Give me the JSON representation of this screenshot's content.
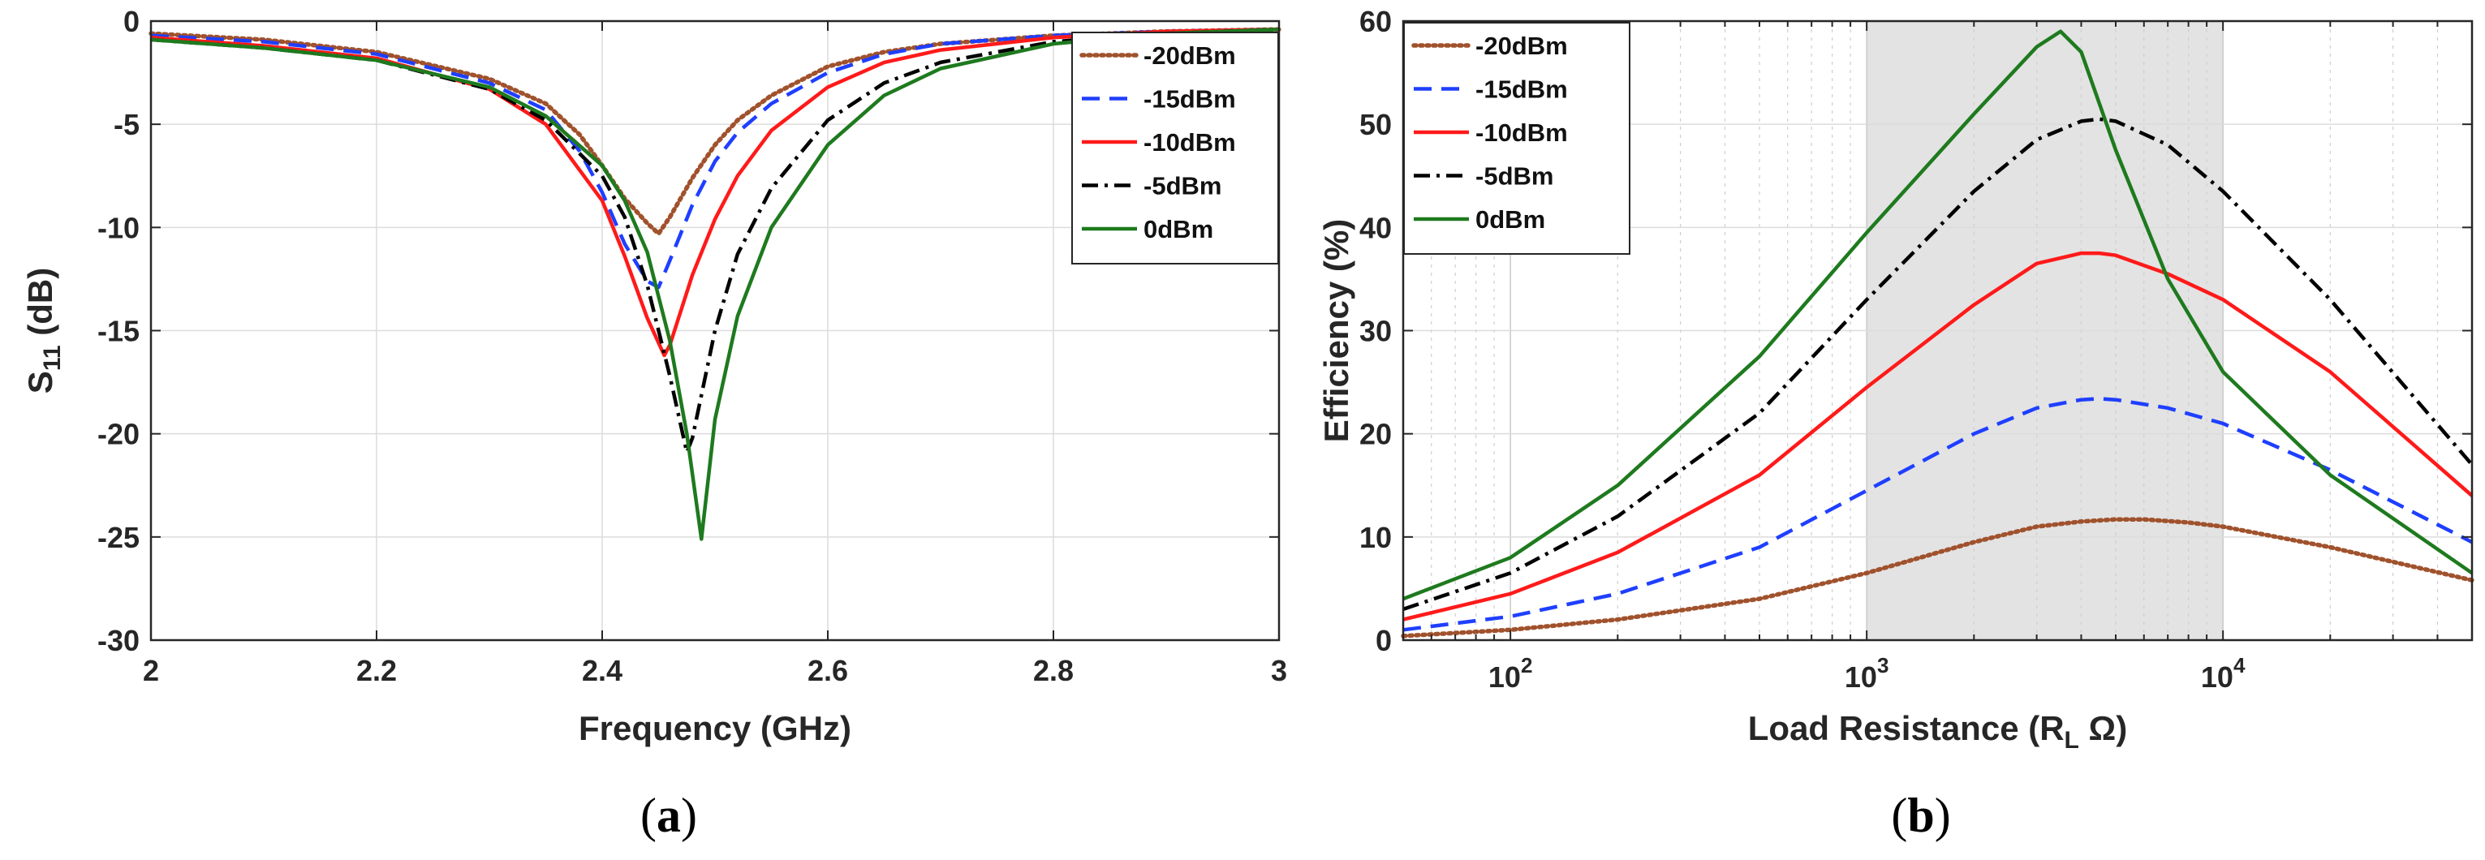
{
  "chart_data": [
    {
      "type": "line",
      "panel_label": "(a)",
      "panel_letter": "a",
      "xlabel": "Frequency (GHz)",
      "ylabel": "S11 (dB)",
      "ylabel_main": "S",
      "ylabel_sub": "11",
      "ylabel_rest": " (dB)",
      "xlim": [
        2,
        3
      ],
      "ylim": [
        -30,
        0
      ],
      "xticks": [
        2,
        2.2,
        2.4,
        2.6,
        2.8,
        3
      ],
      "xtick_labels": [
        "2",
        "2.2",
        "2.4",
        "2.6",
        "2.8",
        "3"
      ],
      "yticks": [
        -30,
        -25,
        -20,
        -15,
        -10,
        -5,
        0
      ],
      "ytick_labels": [
        "-30",
        "-25",
        "-20",
        "-15",
        "-10",
        "-5",
        "0"
      ],
      "grid": true,
      "legend": "top-right",
      "series": [
        {
          "name": "-20dBm",
          "color": "#a0522d",
          "style": "dotted",
          "x": [
            2.0,
            2.1,
            2.2,
            2.3,
            2.35,
            2.38,
            2.4,
            2.42,
            2.44,
            2.45,
            2.46,
            2.48,
            2.5,
            2.52,
            2.55,
            2.6,
            2.65,
            2.7,
            2.8,
            2.9,
            3.0
          ],
          "y": [
            -0.6,
            -0.9,
            -1.5,
            -2.8,
            -4.0,
            -5.5,
            -7.0,
            -8.6,
            -9.8,
            -10.3,
            -9.5,
            -7.6,
            -6.0,
            -4.8,
            -3.6,
            -2.2,
            -1.5,
            -1.1,
            -0.7,
            -0.5,
            -0.4
          ]
        },
        {
          "name": "-15dBm",
          "color": "#1f3fff",
          "style": "dashed",
          "x": [
            2.0,
            2.1,
            2.2,
            2.3,
            2.35,
            2.38,
            2.4,
            2.42,
            2.44,
            2.45,
            2.46,
            2.48,
            2.5,
            2.52,
            2.55,
            2.6,
            2.65,
            2.7,
            2.8,
            2.9,
            3.0
          ],
          "y": [
            -0.7,
            -1.0,
            -1.6,
            -3.0,
            -4.3,
            -6.3,
            -8.3,
            -10.8,
            -12.6,
            -12.9,
            -11.6,
            -8.9,
            -6.8,
            -5.4,
            -4.0,
            -2.5,
            -1.6,
            -1.1,
            -0.7,
            -0.5,
            -0.4
          ]
        },
        {
          "name": "-10dBm",
          "color": "#ff1a1a",
          "style": "solid",
          "x": [
            2.0,
            2.1,
            2.2,
            2.3,
            2.35,
            2.4,
            2.42,
            2.44,
            2.455,
            2.46,
            2.48,
            2.5,
            2.52,
            2.55,
            2.6,
            2.65,
            2.7,
            2.8,
            2.9,
            3.0
          ],
          "y": [
            -0.8,
            -1.2,
            -1.8,
            -3.3,
            -5.0,
            -8.7,
            -11.4,
            -14.4,
            -16.2,
            -15.7,
            -12.3,
            -9.6,
            -7.5,
            -5.3,
            -3.2,
            -2.0,
            -1.4,
            -0.8,
            -0.5,
            -0.4
          ]
        },
        {
          "name": "-5dBm",
          "color": "#000000",
          "style": "dashdot",
          "x": [
            2.0,
            2.1,
            2.2,
            2.3,
            2.35,
            2.4,
            2.42,
            2.44,
            2.46,
            2.475,
            2.48,
            2.5,
            2.52,
            2.55,
            2.6,
            2.65,
            2.7,
            2.8,
            2.9,
            3.0
          ],
          "y": [
            -0.9,
            -1.3,
            -1.9,
            -3.3,
            -4.8,
            -7.5,
            -9.5,
            -12.8,
            -17.2,
            -20.9,
            -20.2,
            -15.0,
            -11.3,
            -8.1,
            -4.8,
            -3.0,
            -2.0,
            -1.0,
            -0.6,
            -0.4
          ]
        },
        {
          "name": "0dBm",
          "color": "#1e7a1e",
          "style": "solid",
          "x": [
            2.0,
            2.1,
            2.2,
            2.3,
            2.35,
            2.4,
            2.42,
            2.44,
            2.46,
            2.475,
            2.488,
            2.5,
            2.52,
            2.55,
            2.6,
            2.65,
            2.7,
            2.8,
            2.9,
            3.0
          ],
          "y": [
            -0.9,
            -1.3,
            -1.9,
            -3.2,
            -4.6,
            -7.0,
            -8.7,
            -11.2,
            -15.5,
            -20.0,
            -25.1,
            -19.3,
            -14.3,
            -10.0,
            -6.0,
            -3.6,
            -2.3,
            -1.1,
            -0.6,
            -0.4
          ]
        }
      ]
    },
    {
      "type": "line",
      "panel_label": "(b)",
      "panel_letter": "b",
      "xlabel": "Load Resistance (RL Ω)",
      "xlabel_main": "Load Resistance (R",
      "xlabel_sub": "L",
      "xlabel_rest": " Ω)",
      "ylabel": "Efficiency (%)",
      "xscale": "log",
      "xlim": [
        50,
        50000
      ],
      "ylim": [
        0,
        60
      ],
      "xticks": [
        100,
        1000,
        10000
      ],
      "xtick_bases": [
        "10",
        "10",
        "10"
      ],
      "xtick_exps": [
        "2",
        "3",
        "4"
      ],
      "yticks": [
        0,
        10,
        20,
        30,
        40,
        50,
        60
      ],
      "ytick_labels": [
        "0",
        "10",
        "20",
        "30",
        "40",
        "50",
        "60"
      ],
      "shaded_region": [
        1000,
        10000
      ],
      "grid": true,
      "legend": "top-left",
      "series": [
        {
          "name": "-20dBm",
          "color": "#a0522d",
          "style": "dotted",
          "x": [
            50,
            100,
            200,
            500,
            1000,
            2000,
            3000,
            4000,
            5000,
            6000,
            8000,
            10000,
            20000,
            50000
          ],
          "y": [
            0.4,
            1.0,
            2.0,
            4.0,
            6.5,
            9.5,
            11.0,
            11.5,
            11.7,
            11.7,
            11.4,
            11.0,
            9.0,
            5.8
          ]
        },
        {
          "name": "-15dBm",
          "color": "#1f3fff",
          "style": "dashed",
          "x": [
            50,
            100,
            200,
            500,
            1000,
            2000,
            3000,
            4000,
            4500,
            5000,
            7000,
            10000,
            20000,
            50000
          ],
          "y": [
            1.0,
            2.3,
            4.5,
            9.0,
            14.5,
            20.0,
            22.5,
            23.3,
            23.4,
            23.3,
            22.5,
            21.0,
            16.5,
            9.5
          ]
        },
        {
          "name": "-10dBm",
          "color": "#ff1a1a",
          "style": "solid",
          "x": [
            50,
            100,
            200,
            500,
            1000,
            2000,
            3000,
            4000,
            4500,
            5000,
            7000,
            10000,
            20000,
            50000
          ],
          "y": [
            2.0,
            4.5,
            8.5,
            16.0,
            24.5,
            32.5,
            36.5,
            37.5,
            37.5,
            37.3,
            35.5,
            33.0,
            26.0,
            14.0
          ]
        },
        {
          "name": "-5dBm",
          "color": "#000000",
          "style": "dashdot",
          "x": [
            50,
            100,
            200,
            500,
            1000,
            2000,
            3000,
            4000,
            4500,
            5000,
            7000,
            10000,
            20000,
            50000
          ],
          "y": [
            3.0,
            6.5,
            12.0,
            22.0,
            33.0,
            43.5,
            48.5,
            50.3,
            50.5,
            50.3,
            48.0,
            43.5,
            33.0,
            17.0
          ]
        },
        {
          "name": "0dBm",
          "color": "#1e7a1e",
          "style": "solid",
          "x": [
            50,
            100,
            200,
            500,
            1000,
            2000,
            3000,
            3500,
            4000,
            5000,
            7000,
            10000,
            20000,
            50000
          ],
          "y": [
            4.0,
            8.0,
            15.0,
            27.5,
            39.5,
            51.0,
            57.5,
            59.0,
            57.0,
            47.5,
            35.0,
            26.0,
            16.0,
            6.5
          ]
        }
      ]
    }
  ]
}
